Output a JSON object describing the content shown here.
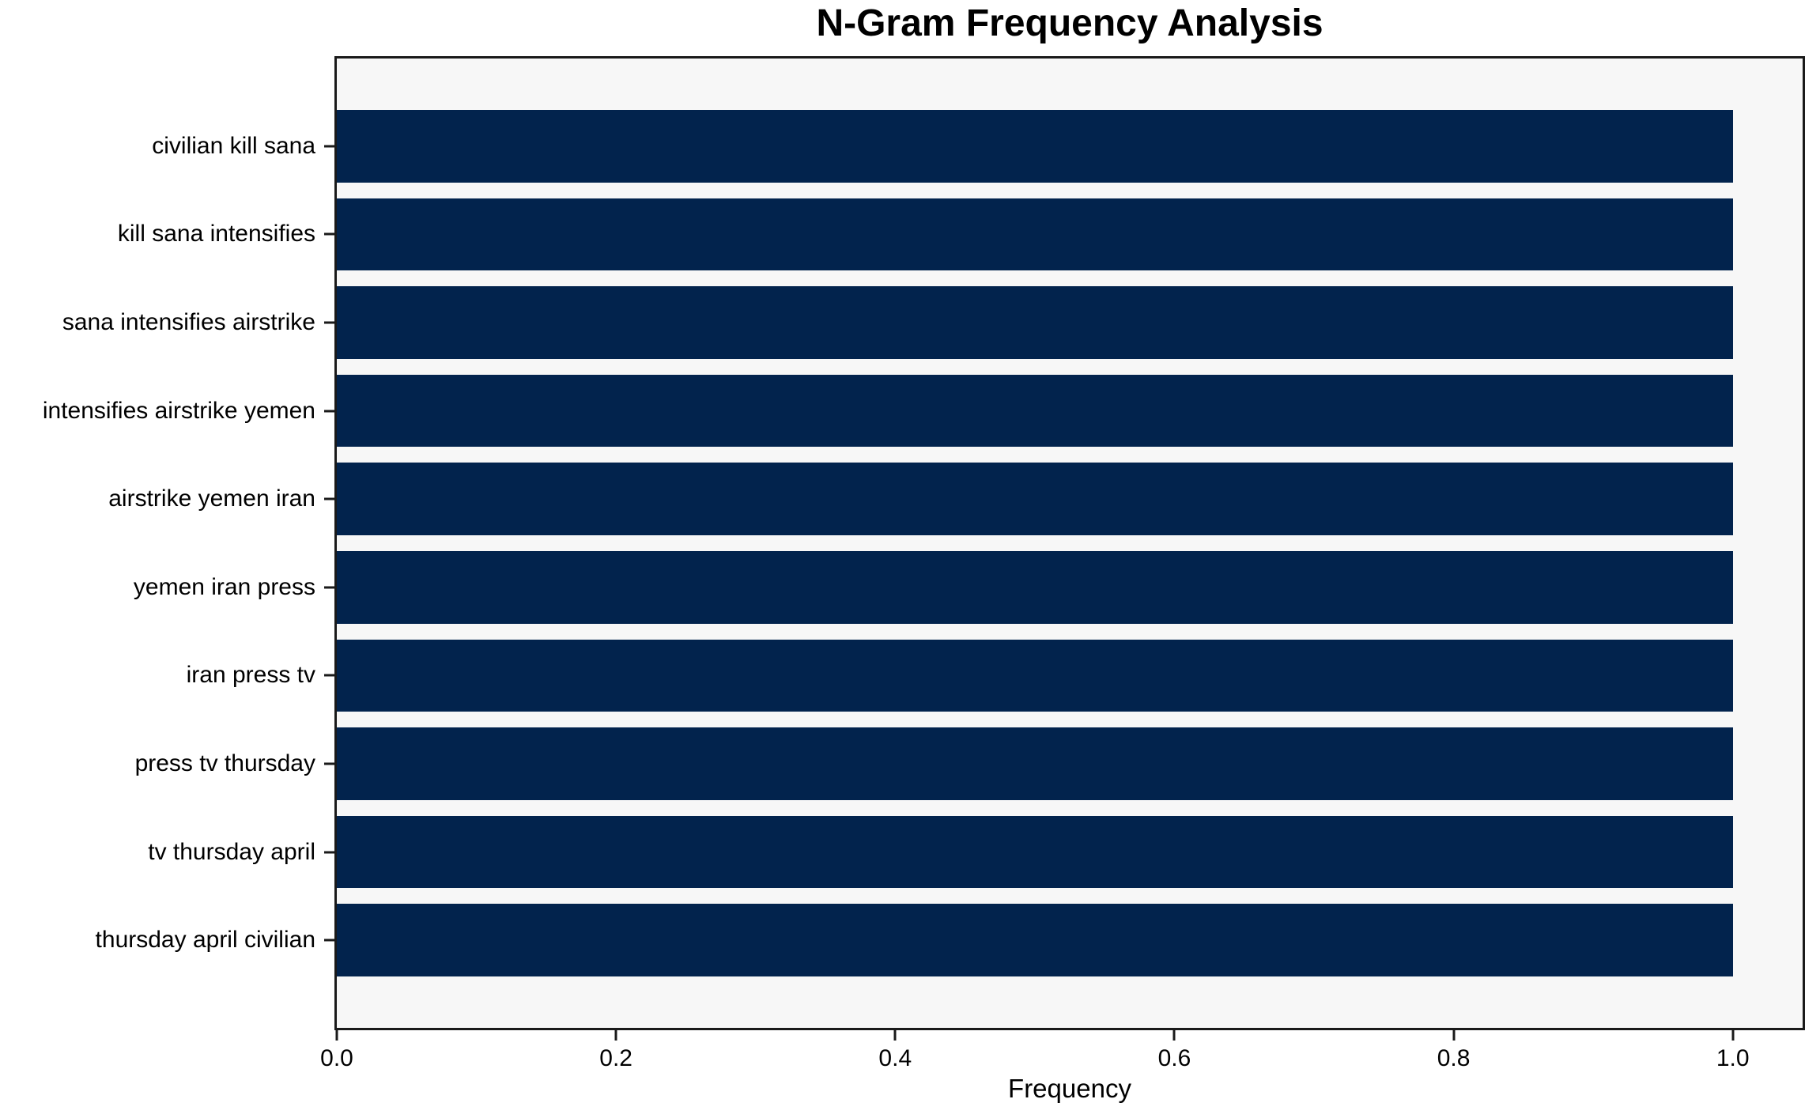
{
  "figure": {
    "background": "#ffffff"
  },
  "chart_data": {
    "type": "bar",
    "orientation": "horizontal",
    "title": "N-Gram Frequency Analysis",
    "xlabel": "Frequency",
    "ylabel": "",
    "categories": [
      "civilian kill sana",
      "kill sana intensifies",
      "sana intensifies airstrike",
      "intensifies airstrike yemen",
      "airstrike yemen iran",
      "yemen iran press",
      "iran press tv",
      "press tv thursday",
      "tv thursday april",
      "thursday april civilian"
    ],
    "values": [
      1.0,
      1.0,
      1.0,
      1.0,
      1.0,
      1.0,
      1.0,
      1.0,
      1.0,
      1.0
    ],
    "xlim": [
      0.0,
      1.05
    ],
    "x_tick_values": [
      0.0,
      0.2,
      0.4,
      0.6,
      0.8,
      1.0
    ],
    "x_tick_labels": [
      "0.0",
      "0.2",
      "0.4",
      "0.6",
      "0.8",
      "1.0"
    ],
    "grid": false,
    "legend": null,
    "bar_height_fraction": 0.8,
    "colors": {
      "bar": "#02234d",
      "plot_background": "#f7f7f7",
      "spine": "#1a1a1a",
      "text": "#000000"
    }
  }
}
